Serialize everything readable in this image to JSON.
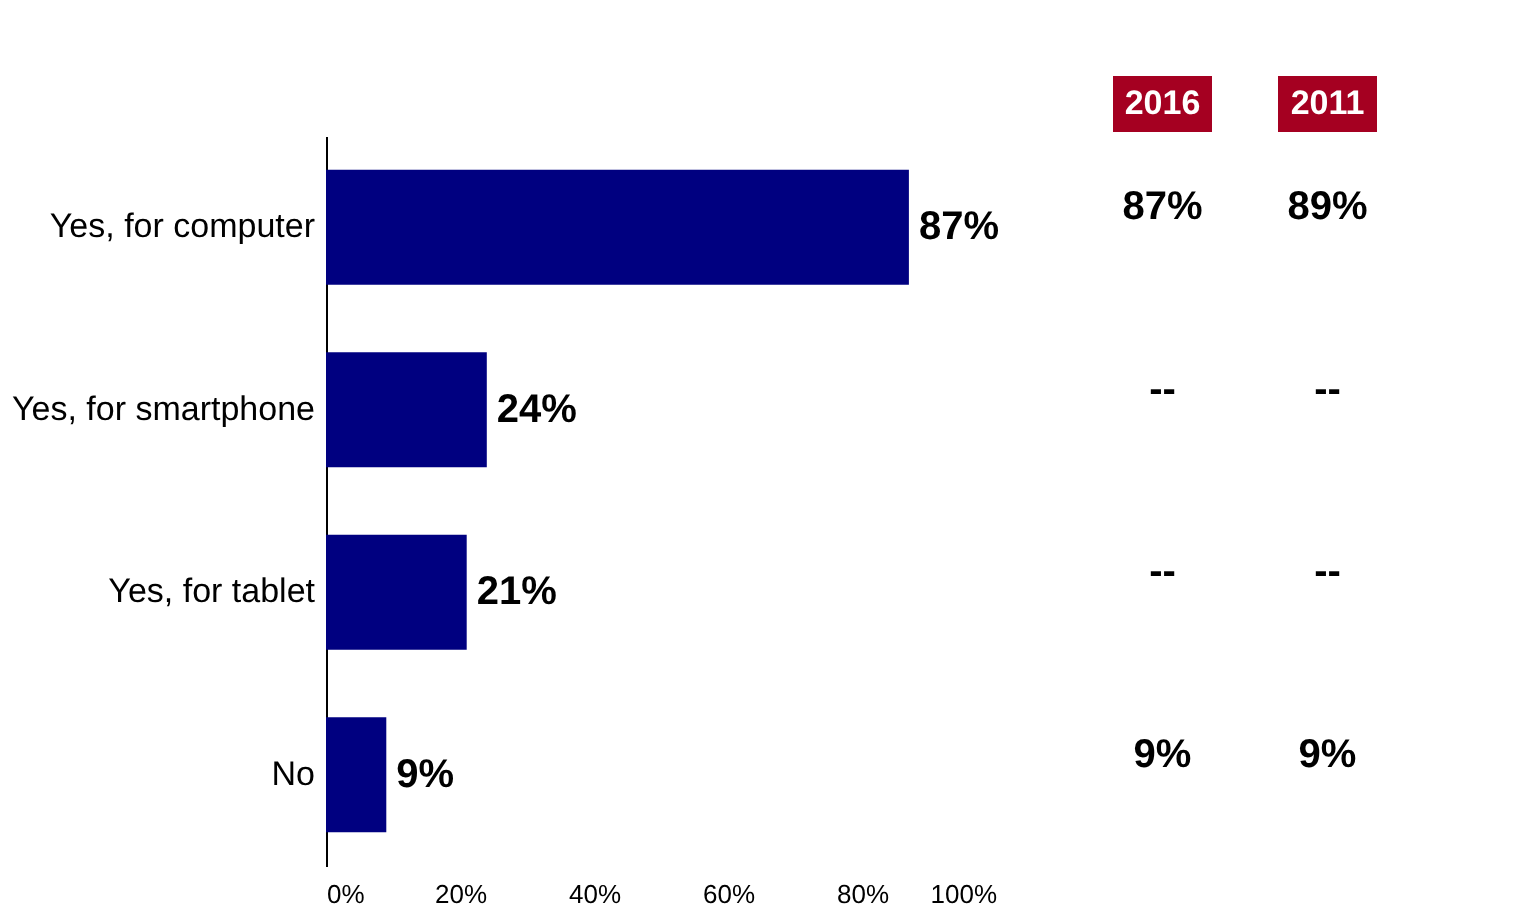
{
  "chart_data": {
    "type": "bar",
    "orientation": "horizontal",
    "categories": [
      "Yes, for computer",
      "Yes, for smartphone",
      "Yes, for tablet",
      "No"
    ],
    "values": [
      87,
      24,
      21,
      9
    ],
    "value_labels": [
      "87%",
      "24%",
      "21%",
      "9%"
    ],
    "color": "#000080",
    "xlim": [
      0,
      100
    ],
    "xticks": [
      {
        "value": 0,
        "label": "0%"
      },
      {
        "value": 20,
        "label": "20%"
      },
      {
        "value": 40,
        "label": "40%"
      },
      {
        "value": 60,
        "label": "60%"
      },
      {
        "value": 80,
        "label": "80%"
      },
      {
        "value": 100,
        "label": "100%"
      }
    ],
    "grid": false,
    "annotations": [
      "2016",
      "2011",
      "87%",
      "89%",
      "--",
      "--",
      "--",
      "--",
      "9%",
      "9%"
    ]
  }
}
